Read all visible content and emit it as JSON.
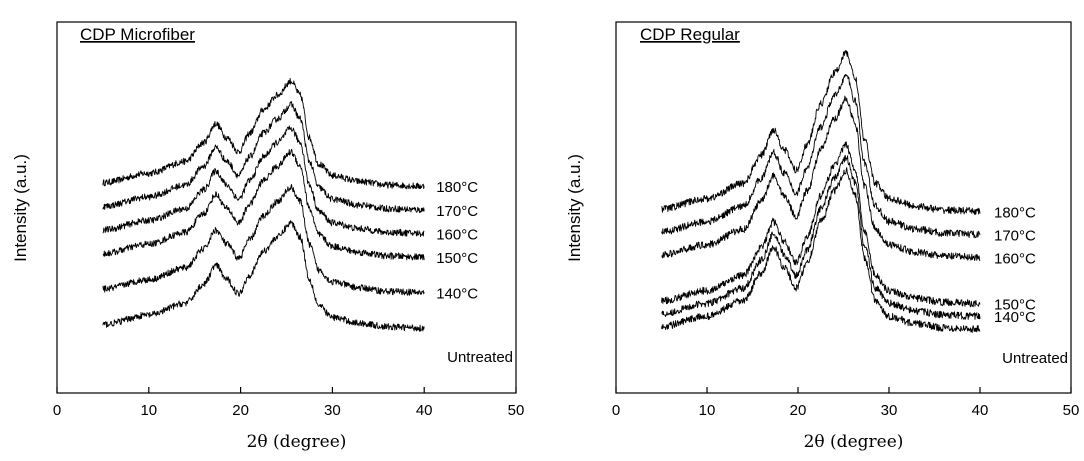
{
  "chart_data": [
    {
      "type": "line",
      "title": "CDP Microfiber",
      "xlabel": "2θ (degree)",
      "ylabel": "Intensity (a.u.)",
      "xlim": [
        0,
        50
      ],
      "xticks": [
        "0",
        "10",
        "20",
        "30",
        "40",
        "50"
      ],
      "y_tick_labels": false,
      "grid": false,
      "series": [
        {
          "name": "180°C",
          "offset": 5,
          "x": [
            5,
            10,
            14,
            16,
            17.3,
            18.5,
            19.8,
            21,
            22.5,
            24,
            25.5,
            26.5,
            27.5,
            28.5,
            30,
            33,
            36,
            40
          ],
          "values": [
            1.7,
            2.1,
            2.6,
            3.4,
            4.2,
            3.6,
            3.0,
            3.8,
            4.8,
            5.4,
            6.0,
            5.4,
            3.6,
            2.5,
            2.0,
            1.75,
            1.6,
            1.55
          ]
        },
        {
          "name": "170°C",
          "offset": 4,
          "x": [
            5,
            10,
            14,
            16,
            17.3,
            18.5,
            19.8,
            21,
            22.5,
            24,
            25.5,
            26.5,
            27.5,
            28.5,
            30,
            33,
            36,
            40
          ],
          "values": [
            1.7,
            2.1,
            2.6,
            3.4,
            4.2,
            3.6,
            3.0,
            3.8,
            4.8,
            5.4,
            6.0,
            5.4,
            3.6,
            2.5,
            2.0,
            1.75,
            1.6,
            1.55
          ]
        },
        {
          "name": "160°C",
          "offset": 3,
          "x": [
            5,
            10,
            14,
            16,
            17.3,
            18.5,
            19.8,
            21,
            22.5,
            24,
            25.5,
            26.5,
            27.5,
            28.5,
            30,
            33,
            36,
            40
          ],
          "values": [
            1.7,
            2.1,
            2.6,
            3.4,
            4.2,
            3.6,
            3.0,
            3.8,
            4.8,
            5.4,
            6.0,
            5.4,
            3.6,
            2.5,
            2.0,
            1.75,
            1.6,
            1.55
          ]
        },
        {
          "name": "150°C",
          "offset": 2,
          "x": [
            5,
            10,
            14,
            16,
            17.3,
            18.5,
            19.8,
            21,
            22.5,
            24,
            25.5,
            26.5,
            27.5,
            28.5,
            30,
            33,
            36,
            40
          ],
          "values": [
            1.7,
            2.1,
            2.6,
            3.4,
            4.2,
            3.6,
            3.0,
            3.8,
            4.8,
            5.4,
            6.0,
            5.4,
            3.6,
            2.5,
            2.0,
            1.75,
            1.6,
            1.55
          ]
        },
        {
          "name": "140°C",
          "offset": 0.5,
          "x": [
            5,
            10,
            14,
            16,
            17.3,
            18.5,
            19.8,
            21,
            22.5,
            24,
            25.5,
            26.5,
            27.5,
            28.5,
            30,
            33,
            36,
            40
          ],
          "values": [
            1.7,
            2.1,
            2.6,
            3.4,
            4.2,
            3.6,
            3.0,
            3.8,
            4.8,
            5.4,
            6.0,
            5.4,
            3.6,
            2.5,
            2.0,
            1.75,
            1.6,
            1.55
          ]
        },
        {
          "name": "Untreated",
          "offset": -1.0,
          "x": [
            5,
            10,
            14,
            16,
            17.3,
            18.5,
            19.8,
            21,
            22.5,
            24,
            25.5,
            26.5,
            27.5,
            28.5,
            30,
            33,
            36,
            40
          ],
          "values": [
            1.7,
            2.1,
            2.6,
            3.4,
            4.2,
            3.6,
            3.0,
            3.8,
            4.8,
            5.4,
            6.0,
            5.4,
            3.6,
            2.5,
            2.0,
            1.75,
            1.6,
            1.55
          ]
        }
      ]
    },
    {
      "type": "line",
      "title": "CDP Regular",
      "xlabel": "2θ (degree)",
      "ylabel": "Intensity (a.u.)",
      "xlim": [
        0,
        50
      ],
      "xticks": [
        "0",
        "10",
        "20",
        "30",
        "40",
        "50"
      ],
      "y_tick_labels": false,
      "grid": false,
      "series": [
        {
          "name": "180°C",
          "offset": 4.2,
          "x": [
            5,
            10,
            14,
            16,
            17.3,
            18.5,
            19.8,
            21,
            22.5,
            24,
            25.3,
            26.3,
            27.3,
            28.5,
            30,
            33,
            36,
            40
          ],
          "values": [
            1.5,
            1.9,
            2.5,
            3.6,
            4.6,
            3.8,
            3.0,
            4.0,
            5.6,
            6.8,
            7.6,
            6.6,
            4.2,
            2.5,
            1.9,
            1.6,
            1.45,
            1.4
          ]
        },
        {
          "name": "170°C",
          "offset": 3.3,
          "x": [
            5,
            10,
            14,
            16,
            17.3,
            18.5,
            19.8,
            21,
            22.5,
            24,
            25.3,
            26.3,
            27.3,
            28.5,
            30,
            33,
            36,
            40
          ],
          "values": [
            1.5,
            1.9,
            2.5,
            3.6,
            4.6,
            3.8,
            3.0,
            4.0,
            5.6,
            6.8,
            7.6,
            6.6,
            4.2,
            2.5,
            1.9,
            1.6,
            1.45,
            1.4
          ]
        },
        {
          "name": "160°C",
          "offset": 2.4,
          "x": [
            5,
            10,
            14,
            16,
            17.3,
            18.5,
            19.8,
            21,
            22.5,
            24,
            25.3,
            26.3,
            27.3,
            28.5,
            30,
            33,
            36,
            40
          ],
          "values": [
            1.5,
            1.9,
            2.5,
            3.6,
            4.6,
            3.8,
            3.0,
            4.0,
            5.6,
            6.8,
            7.6,
            6.6,
            4.2,
            2.5,
            1.9,
            1.6,
            1.45,
            1.4
          ]
        },
        {
          "name": "150°C",
          "offset": 0.6,
          "x": [
            5,
            10,
            14,
            16,
            17.3,
            18.5,
            19.8,
            21,
            22.5,
            24,
            25.3,
            26.3,
            27.3,
            28.5,
            30,
            33,
            36,
            40
          ],
          "values": [
            1.5,
            1.9,
            2.5,
            3.6,
            4.6,
            3.8,
            3.0,
            4.0,
            5.6,
            6.8,
            7.6,
            6.6,
            4.2,
            2.5,
            1.9,
            1.6,
            1.45,
            1.4
          ]
        },
        {
          "name": "140°C",
          "offset": 0.1,
          "x": [
            5,
            10,
            14,
            16,
            17.3,
            18.5,
            19.8,
            21,
            22.5,
            24,
            25.3,
            26.3,
            27.3,
            28.5,
            30,
            33,
            36,
            40
          ],
          "values": [
            1.5,
            1.9,
            2.5,
            3.6,
            4.6,
            3.8,
            3.0,
            4.0,
            5.6,
            6.8,
            7.6,
            6.6,
            4.2,
            2.5,
            1.9,
            1.6,
            1.45,
            1.4
          ]
        },
        {
          "name": "Untreated",
          "offset": -0.4,
          "x": [
            5,
            10,
            14,
            16,
            17.3,
            18.5,
            19.8,
            21,
            22.5,
            24,
            25.3,
            26.3,
            27.3,
            28.5,
            30,
            33,
            36,
            40
          ],
          "values": [
            1.5,
            1.9,
            2.5,
            3.6,
            4.6,
            3.8,
            3.0,
            4.0,
            5.6,
            6.8,
            7.6,
            6.6,
            4.2,
            2.5,
            1.9,
            1.6,
            1.45,
            1.4
          ]
        }
      ]
    }
  ]
}
